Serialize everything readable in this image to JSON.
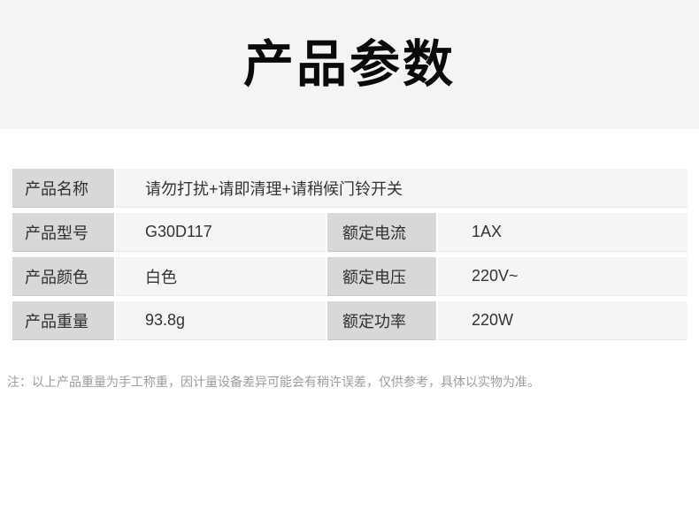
{
  "page": {
    "title": "产品参数",
    "note": "注：以上产品重量为手工称重，因计量设备差异可能会有稍许误差，仅供参考，具体以实物为准。"
  },
  "spec_table": {
    "rows": [
      {
        "label": "产品名称",
        "value": "请勿打扰+请即清理+请稍候门铃开关"
      },
      {
        "label": "产品型号",
        "value": "G30D117",
        "label2": "额定电流",
        "value2": "1AX"
      },
      {
        "label": "产品颜色",
        "value": "白色",
        "label2": "额定电压",
        "value2": "220V~"
      },
      {
        "label": "产品重量",
        "value": "93.8g",
        "label2": "额定功率",
        "value2": "220W"
      }
    ]
  },
  "colors": {
    "banner_bg": "#f4f4f4",
    "label_cell_bg": "#d8d8d8",
    "value_cell_bg": "#f5f5f5",
    "cell_text": "#333333",
    "note_text": "#9c9c9c",
    "title_text": "#0a0a0a"
  }
}
